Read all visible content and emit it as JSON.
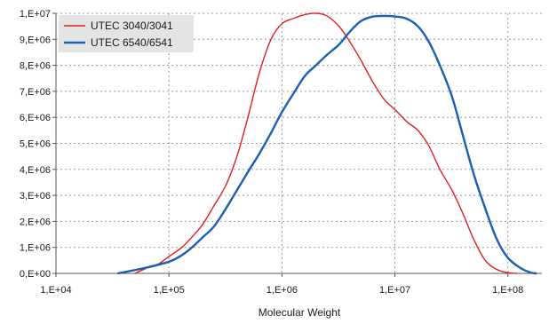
{
  "chart_data": {
    "type": "line",
    "title": "",
    "xlabel": "Molecular Weight",
    "ylabel": "",
    "xscale": "log",
    "xlim": [
      10000,
      200000000
    ],
    "ylim": [
      0,
      10000000
    ],
    "grid": true,
    "legend_position": "top-left",
    "x_tick_labels": [
      {
        "value": 10000,
        "label": "1,E+04"
      },
      {
        "value": 100000,
        "label": "1,E+05"
      },
      {
        "value": 1000000,
        "label": "1,E+06"
      },
      {
        "value": 10000000,
        "label": "1,E+07"
      },
      {
        "value": 100000000,
        "label": "1,E+08"
      }
    ],
    "y_tick_labels": [
      {
        "value": 0,
        "label": "0,E+00"
      },
      {
        "value": 1000000,
        "label": "1,E+06"
      },
      {
        "value": 2000000,
        "label": "2,E+06"
      },
      {
        "value": 3000000,
        "label": "3,E+06"
      },
      {
        "value": 4000000,
        "label": "4,E+06"
      },
      {
        "value": 5000000,
        "label": "5,E+06"
      },
      {
        "value": 6000000,
        "label": "6,E+06"
      },
      {
        "value": 7000000,
        "label": "7,E+06"
      },
      {
        "value": 8000000,
        "label": "8,E+06"
      },
      {
        "value": 9000000,
        "label": "9,E+06"
      },
      {
        "value": 10000000,
        "label": "1,E+07"
      }
    ],
    "series": [
      {
        "name": "UTEC 3040/3041",
        "color": "#e02020",
        "points": [
          [
            50000,
            0
          ],
          [
            56000,
            100000
          ],
          [
            70000,
            280000
          ],
          [
            80000,
            350000
          ],
          [
            100000,
            650000
          ],
          [
            130000,
            1000000
          ],
          [
            160000,
            1400000
          ],
          [
            200000,
            1900000
          ],
          [
            250000,
            2600000
          ],
          [
            320000,
            3400000
          ],
          [
            400000,
            4500000
          ],
          [
            500000,
            6000000
          ],
          [
            630000,
            7700000
          ],
          [
            800000,
            9000000
          ],
          [
            1000000,
            9600000
          ],
          [
            1260000,
            9800000
          ],
          [
            1600000,
            9950000
          ],
          [
            2000000,
            10000000
          ],
          [
            2500000,
            9900000
          ],
          [
            3200000,
            9500000
          ],
          [
            4000000,
            8900000
          ],
          [
            5000000,
            8200000
          ],
          [
            6300000,
            7400000
          ],
          [
            8000000,
            6700000
          ],
          [
            10000000,
            6300000
          ],
          [
            13000000,
            5800000
          ],
          [
            16000000,
            5500000
          ],
          [
            20000000,
            4900000
          ],
          [
            25000000,
            4000000
          ],
          [
            32000000,
            3200000
          ],
          [
            40000000,
            2300000
          ],
          [
            50000000,
            1300000
          ],
          [
            63000000,
            500000
          ],
          [
            80000000,
            150000
          ],
          [
            100000000,
            30000
          ],
          [
            120000000,
            0
          ]
        ]
      },
      {
        "name": "UTEC 6540/6541",
        "color": "#1a5fb4",
        "points": [
          [
            35000,
            0
          ],
          [
            60000,
            200000
          ],
          [
            100000,
            450000
          ],
          [
            130000,
            700000
          ],
          [
            160000,
            1000000
          ],
          [
            200000,
            1400000
          ],
          [
            250000,
            1800000
          ],
          [
            320000,
            2500000
          ],
          [
            400000,
            3200000
          ],
          [
            500000,
            3900000
          ],
          [
            630000,
            4600000
          ],
          [
            800000,
            5400000
          ],
          [
            1000000,
            6200000
          ],
          [
            1300000,
            7000000
          ],
          [
            1600000,
            7600000
          ],
          [
            2000000,
            8000000
          ],
          [
            2500000,
            8400000
          ],
          [
            3200000,
            8800000
          ],
          [
            4000000,
            9300000
          ],
          [
            5000000,
            9700000
          ],
          [
            6300000,
            9870000
          ],
          [
            8000000,
            9900000
          ],
          [
            10000000,
            9880000
          ],
          [
            12600000,
            9800000
          ],
          [
            16000000,
            9500000
          ],
          [
            20000000,
            8900000
          ],
          [
            25000000,
            8000000
          ],
          [
            32000000,
            6800000
          ],
          [
            40000000,
            5300000
          ],
          [
            50000000,
            3800000
          ],
          [
            63000000,
            2500000
          ],
          [
            80000000,
            1300000
          ],
          [
            100000000,
            600000
          ],
          [
            130000000,
            200000
          ],
          [
            160000000,
            30000
          ],
          [
            180000000,
            0
          ]
        ]
      }
    ]
  }
}
